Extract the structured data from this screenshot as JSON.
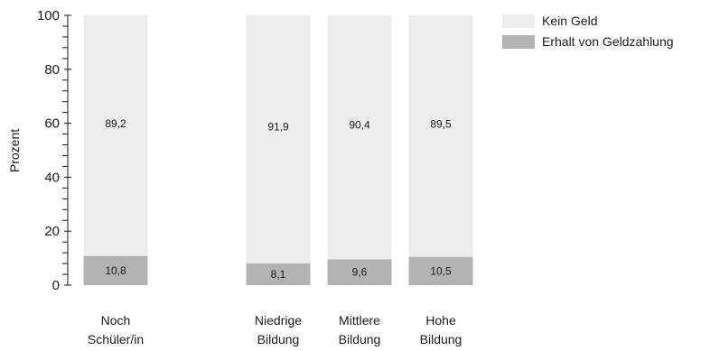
{
  "chart_data": {
    "type": "bar",
    "stacked": true,
    "categories": [
      [
        "Noch",
        "Schüler/in"
      ],
      [
        "Niedrige",
        "Bildung"
      ],
      [
        "Mittlere",
        "Bildung"
      ],
      [
        "Hohe",
        "Bildung"
      ]
    ],
    "series": [
      {
        "name": "Erhalt von Geldzahlung",
        "values": [
          10.8,
          8.1,
          9.6,
          10.5
        ],
        "labels": [
          "10,8",
          "8,1",
          "9,6",
          "10,5"
        ],
        "color": "#b3b3b3"
      },
      {
        "name": "Kein Geld",
        "values": [
          89.2,
          91.9,
          90.4,
          89.5
        ],
        "labels": [
          "89,2",
          "91,9",
          "90,4",
          "89,5"
        ],
        "color": "#ededed"
      }
    ],
    "legend_order": [
      "Kein Geld",
      "Erhalt von Geldzahlung"
    ],
    "ylabel": "Prozent",
    "ylim": [
      0,
      100
    ],
    "yticks": [
      0,
      20,
      40,
      60,
      80,
      100
    ],
    "grid": false,
    "legend_position": "top-right"
  }
}
